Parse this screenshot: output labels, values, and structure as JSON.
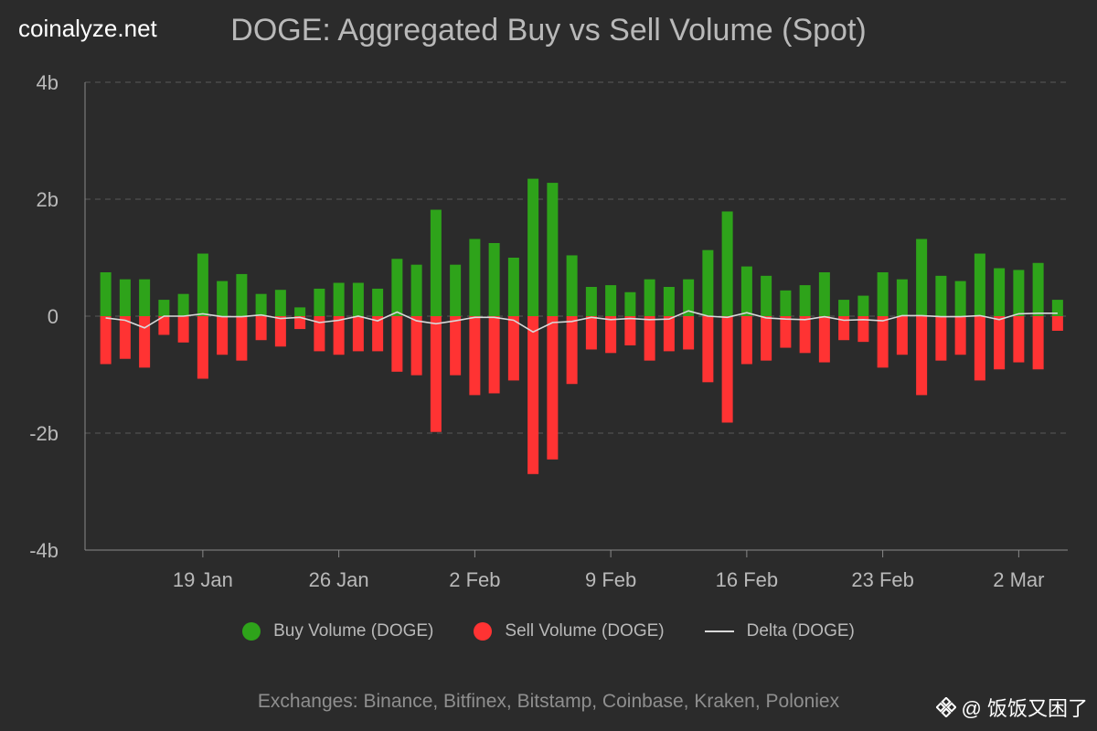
{
  "brand": "coinalyze.net",
  "watermark": {
    "icon": "diamond-logo-icon",
    "text": "@ 饭饭又困了"
  },
  "colors": {
    "buy": "#2ea31a",
    "sell": "#ff3333",
    "delta": "#d9d9d9",
    "grid": "#5a5a5a",
    "axis": "#8a8a8a"
  },
  "legend": {
    "buy": "Buy Volume (DOGE)",
    "sell": "Sell Volume (DOGE)",
    "delta": "Delta (DOGE)"
  },
  "exchanges": "Exchanges: Binance, Bitfinex, Bitstamp, Coinbase, Kraken, Poloniex",
  "chart_data": {
    "type": "bar",
    "title": "DOGE: Aggregated Buy vs Sell Volume (Spot)",
    "ylim": [
      -4,
      4
    ],
    "yticks": [
      4,
      2,
      0,
      -2,
      -4
    ],
    "ytick_labels": [
      "4b",
      "2b",
      "0",
      "-2b",
      "-4b"
    ],
    "xtick_labels": [
      "19 Jan",
      "26 Jan",
      "2 Feb",
      "9 Feb",
      "16 Feb",
      "23 Feb",
      "2 Mar"
    ],
    "xtick_positions": [
      5,
      12,
      19,
      26,
      33,
      40,
      47
    ],
    "grid": true,
    "units": "billions DOGE",
    "series": [
      {
        "name": "Buy Volume (DOGE)",
        "values": [
          0.75,
          0.63,
          0.63,
          0.28,
          0.38,
          1.07,
          0.6,
          0.72,
          0.38,
          0.45,
          0.15,
          0.47,
          0.57,
          0.57,
          0.47,
          0.98,
          0.88,
          1.82,
          0.88,
          1.32,
          1.25,
          1.0,
          2.35,
          2.28,
          1.04,
          0.5,
          0.53,
          0.41,
          0.63,
          0.5,
          0.63,
          1.13,
          1.79,
          0.85,
          0.69,
          0.44,
          0.53,
          0.75,
          0.28,
          0.35,
          0.75,
          0.63,
          1.32,
          0.69,
          0.6,
          1.07,
          0.82,
          0.79,
          0.91,
          0.28
        ]
      },
      {
        "name": "Sell Volume (DOGE)",
        "values": [
          -0.82,
          -0.73,
          -0.88,
          -0.32,
          -0.45,
          -1.07,
          -0.66,
          -0.76,
          -0.41,
          -0.52,
          -0.22,
          -0.6,
          -0.66,
          -0.6,
          -0.6,
          -0.95,
          -1.01,
          -1.98,
          -1.01,
          -1.35,
          -1.32,
          -1.1,
          -2.7,
          -2.45,
          -1.16,
          -0.57,
          -0.63,
          -0.5,
          -0.76,
          -0.6,
          -0.57,
          -1.13,
          -1.82,
          -0.82,
          -0.76,
          -0.54,
          -0.63,
          -0.79,
          -0.41,
          -0.44,
          -0.88,
          -0.66,
          -1.35,
          -0.76,
          -0.66,
          -1.1,
          -0.91,
          -0.79,
          -0.91,
          -0.25
        ]
      },
      {
        "name": "Delta (DOGE)",
        "values": [
          -0.03,
          -0.07,
          -0.2,
          0.0,
          0.0,
          0.04,
          -0.01,
          -0.01,
          0.02,
          -0.04,
          -0.02,
          -0.11,
          -0.07,
          0.0,
          -0.08,
          0.07,
          -0.08,
          -0.13,
          -0.08,
          -0.02,
          -0.02,
          -0.07,
          -0.27,
          -0.11,
          -0.09,
          -0.02,
          -0.06,
          -0.04,
          -0.06,
          -0.05,
          0.09,
          0.0,
          -0.02,
          0.06,
          -0.03,
          -0.05,
          -0.06,
          -0.01,
          -0.07,
          -0.06,
          -0.08,
          0.01,
          0.01,
          -0.01,
          -0.01,
          0.01,
          -0.06,
          0.04,
          0.05,
          0.05
        ]
      }
    ]
  }
}
